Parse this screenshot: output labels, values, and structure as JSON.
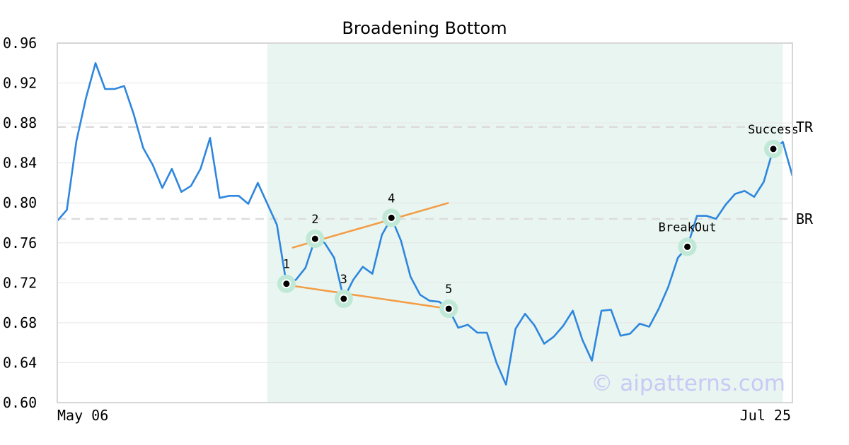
{
  "chart_data": {
    "type": "line",
    "title": "Broadening Bottom",
    "xlabel": "",
    "ylabel": "",
    "ylim": [
      0.6,
      0.96
    ],
    "y_ticks": [
      "0.60",
      "0.64",
      "0.68",
      "0.72",
      "0.76",
      "0.80",
      "0.84",
      "0.88",
      "0.92",
      "0.96"
    ],
    "x_tick_labels": [
      "May 06",
      "Jul 25"
    ],
    "grid": "horizontal",
    "series": [
      {
        "color": "#2e86de",
        "values": [
          0.782,
          0.793,
          0.862,
          0.905,
          0.94,
          0.914,
          0.914,
          0.917,
          0.889,
          0.855,
          0.838,
          0.815,
          0.834,
          0.811,
          0.817,
          0.834,
          0.865,
          0.805,
          0.807,
          0.807,
          0.799,
          0.82,
          0.799,
          0.778,
          0.719,
          0.723,
          0.735,
          0.764,
          0.76,
          0.745,
          0.704,
          0.723,
          0.736,
          0.729,
          0.768,
          0.785,
          0.762,
          0.726,
          0.708,
          0.702,
          0.701,
          0.694,
          0.675,
          0.678,
          0.67,
          0.67,
          0.64,
          0.618,
          0.674,
          0.689,
          0.677,
          0.659,
          0.666,
          0.677,
          0.692,
          0.663,
          0.642,
          0.692,
          0.693,
          0.667,
          0.669,
          0.679,
          0.676,
          0.694,
          0.716,
          0.745,
          0.756,
          0.787,
          0.787,
          0.784,
          0.798,
          0.809,
          0.812,
          0.806,
          0.821,
          0.854,
          0.861,
          0.827
        ]
      }
    ],
    "pattern_region": {
      "start_index": 22,
      "end_index": 76,
      "color": "#e9f5f0"
    },
    "levels": [
      {
        "label": "TR",
        "value": 0.876
      },
      {
        "label": "BR",
        "value": 0.784
      }
    ],
    "trend_lines": [
      {
        "from": [
          24.6,
          0.755
        ],
        "to": [
          41.0,
          0.8
        ],
        "color": "#f39c44"
      },
      {
        "from": [
          24.6,
          0.717
        ],
        "to": [
          41.0,
          0.694
        ],
        "color": "#f39c44"
      }
    ],
    "points": [
      {
        "label": "1",
        "index": 24,
        "value": 0.719
      },
      {
        "label": "2",
        "index": 27,
        "value": 0.764
      },
      {
        "label": "3",
        "index": 30,
        "value": 0.704
      },
      {
        "label": "4",
        "index": 35,
        "value": 0.785
      },
      {
        "label": "5",
        "index": 41,
        "value": 0.694
      },
      {
        "label": "BreakOut",
        "index": 66,
        "value": 0.756
      },
      {
        "label": "Success",
        "index": 75,
        "value": 0.854
      }
    ],
    "watermark": "© aipatterns.com"
  }
}
